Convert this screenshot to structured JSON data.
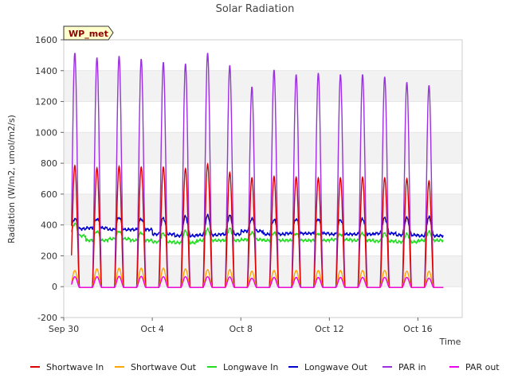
{
  "chart_data": {
    "type": "line",
    "title": "Solar Radiation",
    "ylabel": "Radiation (W/m2, umol/m2/s)",
    "xlabel": "Time",
    "station_label": "WP_met",
    "ylim": [
      -200,
      1600
    ],
    "y_ticks": [
      -200,
      0,
      200,
      400,
      600,
      800,
      1000,
      1200,
      1400,
      1600
    ],
    "x_range_days": [
      0,
      18
    ],
    "x_ticks": [
      {
        "day": 0,
        "label": "Sep 30"
      },
      {
        "day": 4,
        "label": "Oct 4"
      },
      {
        "day": 8,
        "label": "Oct 8"
      },
      {
        "day": 12,
        "label": "Oct 12"
      },
      {
        "day": 16,
        "label": "Oct 16"
      }
    ],
    "grid": "horizontal-bands",
    "legend_position": "bottom",
    "series": [
      {
        "name": "Shortwave In",
        "color": "#dd0000",
        "daily_peaks": [
          790,
          775,
          785,
          780,
          780,
          770,
          800,
          745,
          710,
          720,
          715,
          710,
          710,
          715,
          710,
          705,
          690
        ]
      },
      {
        "name": "Shortwave Out",
        "color": "#ffa500",
        "daily_peaks": [
          110,
          120,
          125,
          125,
          125,
          120,
          115,
          115,
          105,
          110,
          110,
          110,
          110,
          110,
          110,
          105,
          105
        ]
      },
      {
        "name": "Longwave In",
        "color": "#22dd22",
        "daily_base": [
          330,
          300,
          310,
          300,
          290,
          285,
          300,
          300,
          305,
          300,
          300,
          300,
          305,
          300,
          295,
          290,
          300
        ],
        "daily_peaks": [
          410,
          360,
          360,
          350,
          345,
          360,
          370,
          375,
          350,
          350,
          345,
          345,
          340,
          345,
          345,
          340,
          355
        ]
      },
      {
        "name": "Longwave Out",
        "color": "#0000cc",
        "daily_base": [
          375,
          380,
          370,
          370,
          340,
          330,
          335,
          340,
          360,
          340,
          345,
          345,
          340,
          340,
          345,
          335,
          330
        ],
        "daily_peaks": [
          440,
          440,
          450,
          440,
          445,
          455,
          460,
          460,
          440,
          435,
          440,
          440,
          435,
          440,
          445,
          445,
          450
        ]
      },
      {
        "name": "PAR in",
        "color": "#9b30e0",
        "daily_peaks": [
          1520,
          1490,
          1500,
          1480,
          1460,
          1450,
          1520,
          1440,
          1300,
          1410,
          1380,
          1390,
          1380,
          1380,
          1365,
          1330,
          1310
        ]
      },
      {
        "name": "PAR out",
        "color": "#ee00ee",
        "daily_peaks": [
          70,
          70,
          72,
          72,
          70,
          70,
          70,
          68,
          60,
          65,
          65,
          65,
          65,
          65,
          65,
          65,
          60
        ]
      }
    ]
  }
}
